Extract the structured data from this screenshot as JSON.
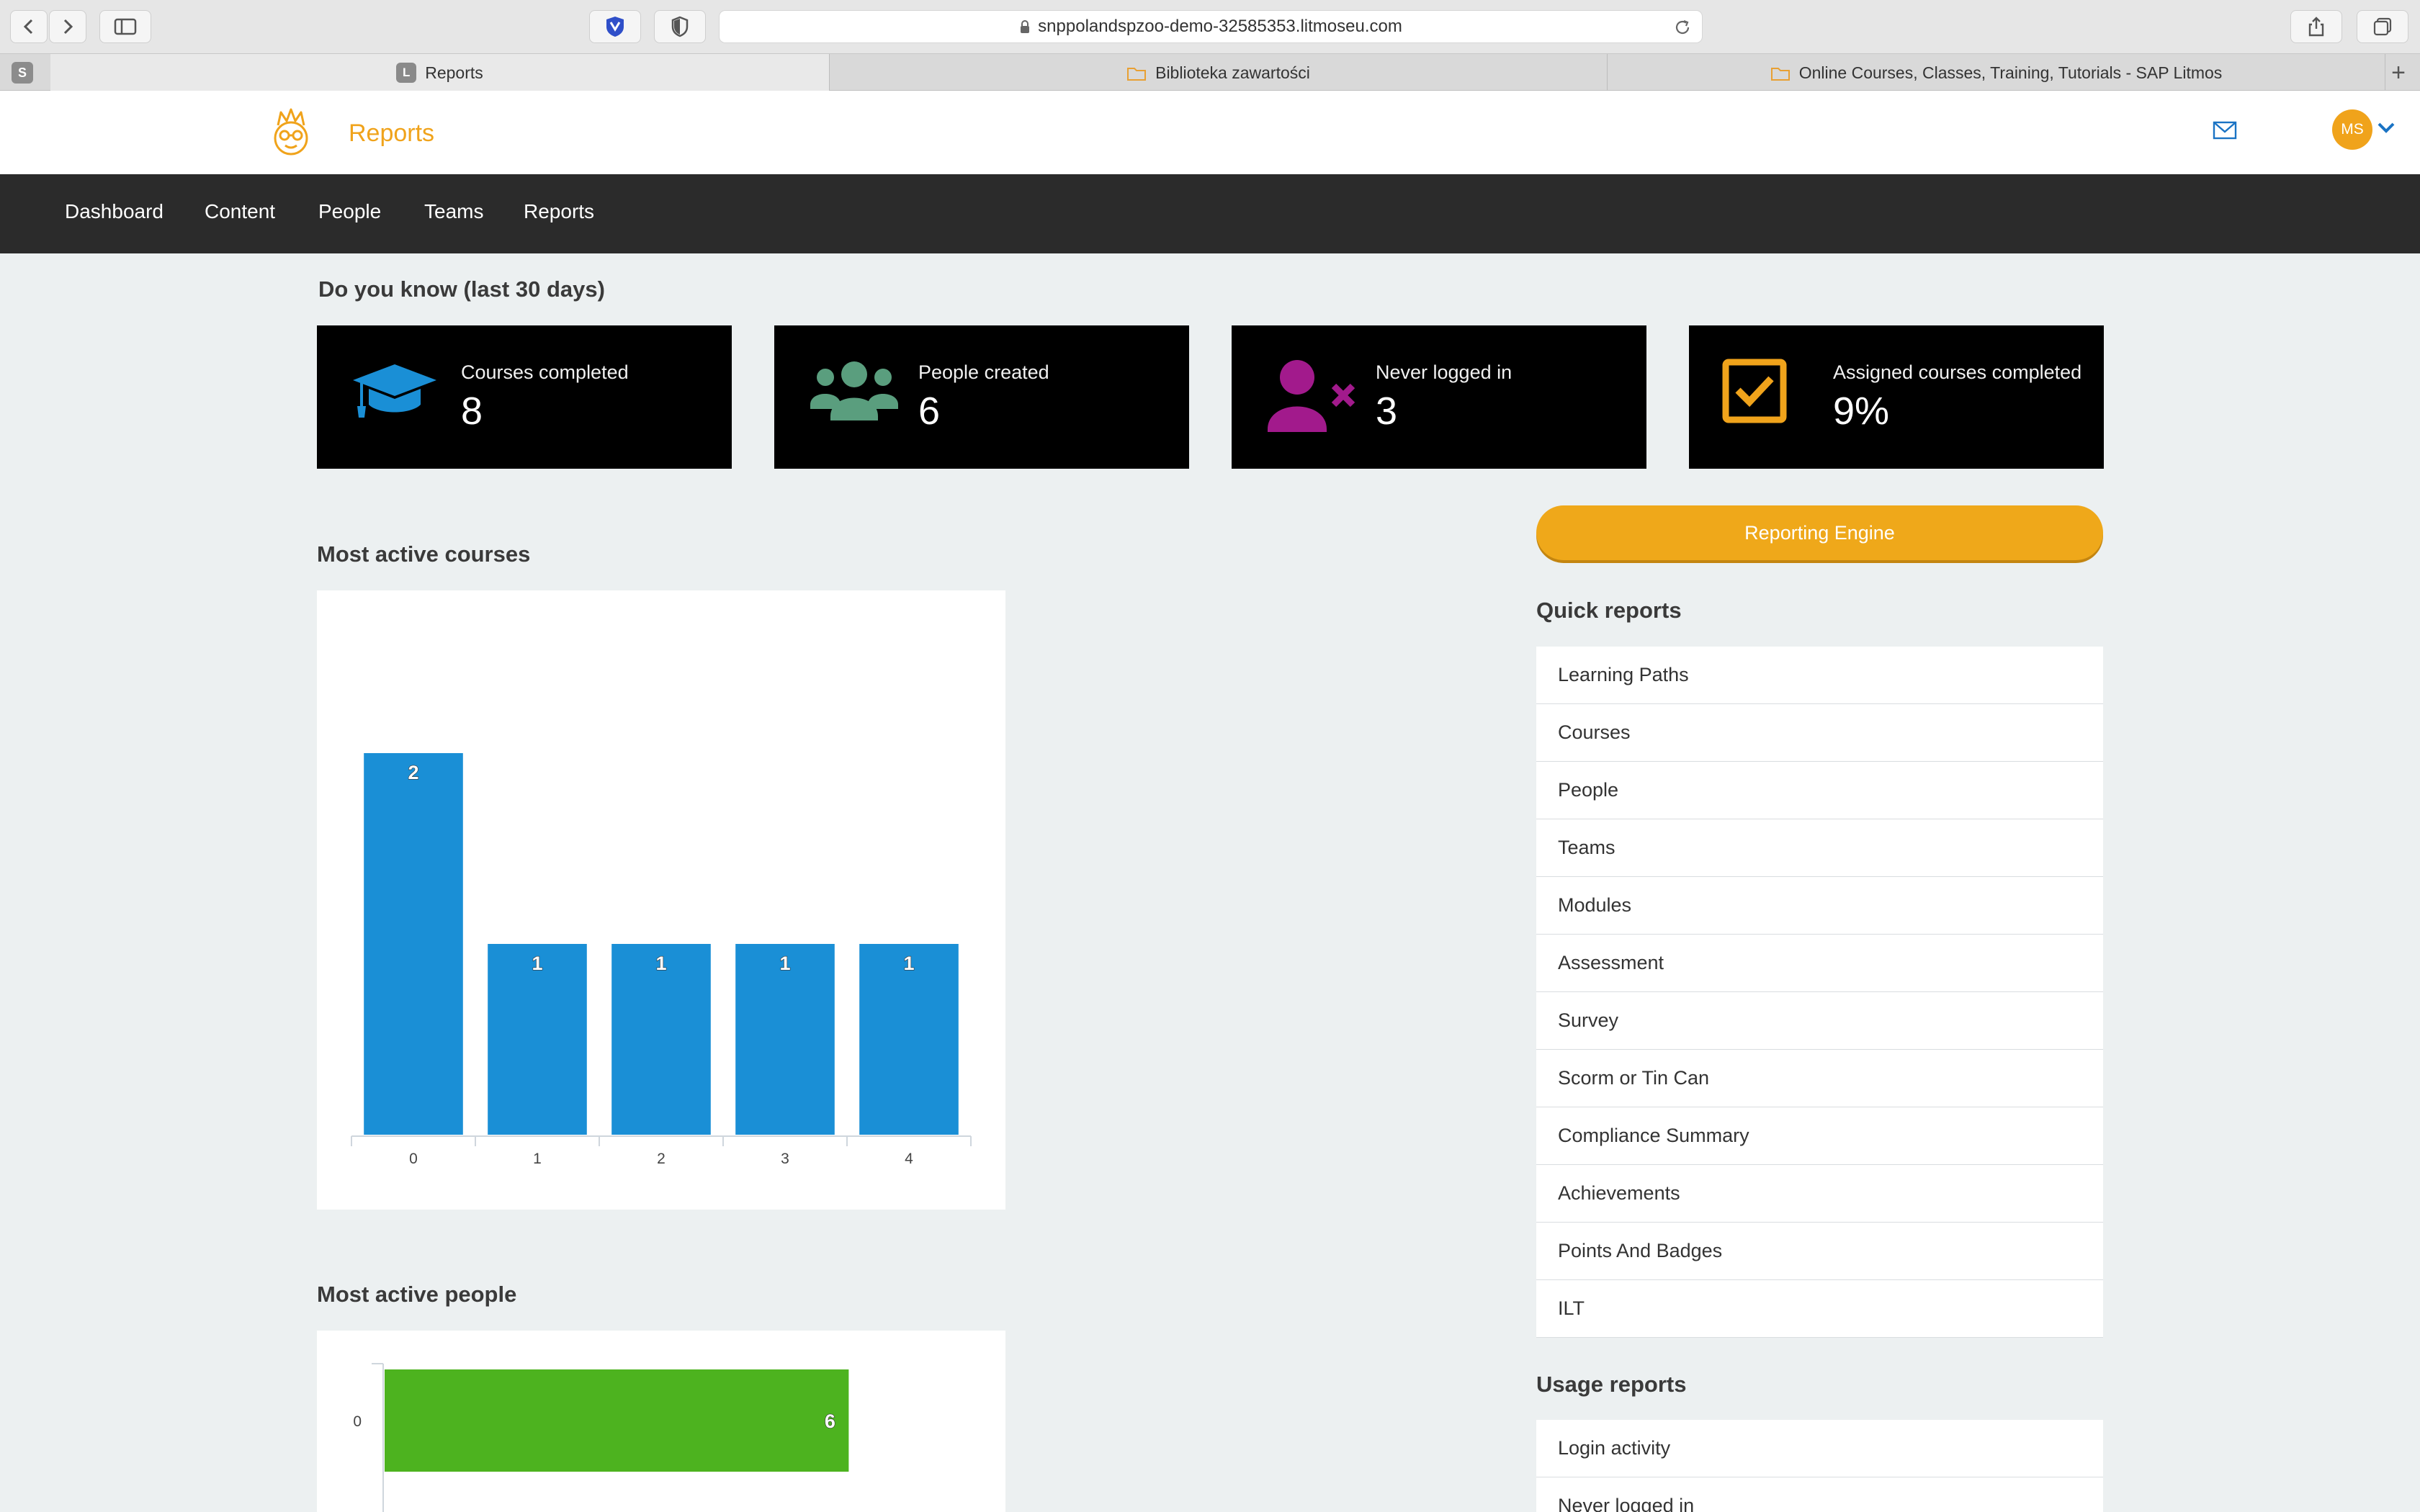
{
  "browser": {
    "url": "snppolandspzoo-demo-32585353.litmoseu.com",
    "pinned_tab": "S",
    "tabs": [
      {
        "favicon": "L",
        "label": "Reports"
      },
      {
        "favicon": "",
        "label": "Biblioteka zawartości"
      },
      {
        "favicon": "",
        "label": "Online Courses, Classes, Training, Tutorials - SAP Litmos"
      }
    ]
  },
  "header": {
    "title": "Reports",
    "avatar_initials": "MS"
  },
  "nav": {
    "items": [
      "Dashboard",
      "Content",
      "People",
      "Teams",
      "Reports"
    ]
  },
  "stats_title": "Do you know (last 30 days)",
  "stats": [
    {
      "label": "Courses completed",
      "value": "8",
      "icon": "graduation-cap-icon",
      "color": "#1a8fd6"
    },
    {
      "label": "People created",
      "value": "6",
      "icon": "users-group-icon",
      "color": "#5a9e7e"
    },
    {
      "label": "Never logged in",
      "value": "3",
      "icon": "user-remove-icon",
      "color": "#a21a8c"
    },
    {
      "label": "Assigned courses completed",
      "value": "9%",
      "icon": "checkbox-icon",
      "color": "#f0a31b"
    }
  ],
  "reporting_engine_label": "Reporting Engine",
  "quick_reports": {
    "title": "Quick reports",
    "items": [
      "Learning Paths",
      "Courses",
      "People",
      "Teams",
      "Modules",
      "Assessment",
      "Survey",
      "Scorm or Tin Can",
      "Compliance Summary",
      "Achievements",
      "Points And Badges",
      "ILT"
    ]
  },
  "usage_reports": {
    "title": "Usage reports",
    "items": [
      "Login activity",
      "Never logged in"
    ]
  },
  "chart_data": [
    {
      "type": "bar",
      "title": "Most active courses",
      "categories": [
        "0",
        "1",
        "2",
        "3",
        "4"
      ],
      "values": [
        2,
        1,
        1,
        1,
        1
      ],
      "ylim": [
        0,
        2.4
      ],
      "color": "#1a8fd6",
      "grid": false
    },
    {
      "type": "bar",
      "orientation": "horizontal",
      "title": "Most active people",
      "categories": [
        "0"
      ],
      "values": [
        6
      ],
      "xlim": [
        0,
        7.3
      ],
      "color": "#4db31f",
      "grid": false
    }
  ]
}
